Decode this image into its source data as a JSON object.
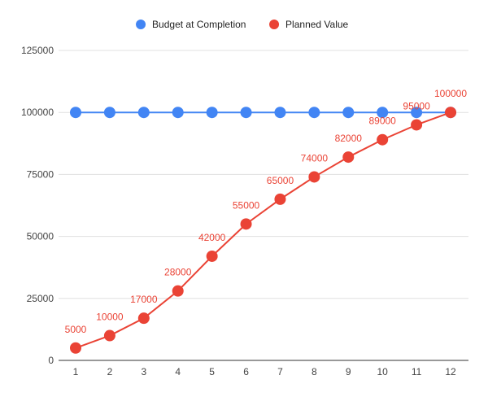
{
  "chart_data": {
    "type": "line",
    "x": [
      1,
      2,
      3,
      4,
      5,
      6,
      7,
      8,
      9,
      10,
      11,
      12
    ],
    "series": [
      {
        "name": "Budget at Completion",
        "color": "#4285F4",
        "values": [
          100000,
          100000,
          100000,
          100000,
          100000,
          100000,
          100000,
          100000,
          100000,
          100000,
          100000,
          100000
        ],
        "data_labels": false
      },
      {
        "name": "Planned Value",
        "color": "#EA4335",
        "values": [
          5000,
          10000,
          17000,
          28000,
          42000,
          55000,
          65000,
          74000,
          82000,
          89000,
          95000,
          100000
        ],
        "data_labels": true
      }
    ],
    "title": "",
    "xlabel": "",
    "ylabel": "",
    "ylim": [
      0,
      125000
    ],
    "yticks": [
      0,
      25000,
      50000,
      75000,
      100000,
      125000
    ],
    "xticks": [
      1,
      2,
      3,
      4,
      5,
      6,
      7,
      8,
      9,
      10,
      11,
      12
    ],
    "grid": true,
    "legend": "top-center"
  }
}
